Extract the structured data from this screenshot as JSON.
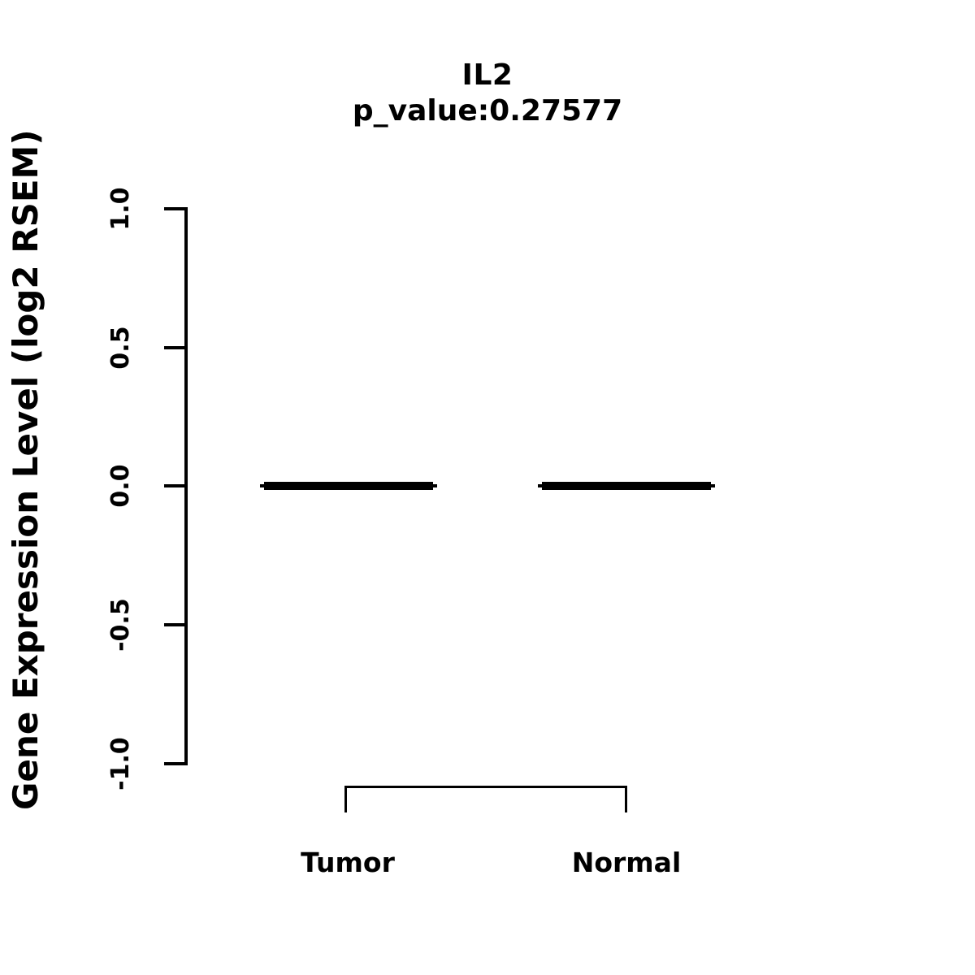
{
  "figure": {
    "background_color": "#ffffff",
    "foreground_color": "#000000"
  },
  "chart_data": {
    "type": "boxplot",
    "title": "IL2",
    "subtitle": "p_value:0.27577",
    "p_value": 0.27577,
    "gene": "IL2",
    "xlabel": "",
    "ylabel": "Gene Expression Level (log2 RSEM)",
    "categories": [
      "Tumor",
      "Normal"
    ],
    "series": [
      {
        "name": "Tumor",
        "median": 0.0,
        "q1": 0.0,
        "q3": 0.0,
        "whisker_low": 0.0,
        "whisker_high": 0.0
      },
      {
        "name": "Normal",
        "median": 0.0,
        "q1": 0.0,
        "q3": 0.0,
        "whisker_low": 0.0,
        "whisker_high": 0.0
      }
    ],
    "ylim": [
      -1.0,
      1.0
    ],
    "yticks": [
      1.0,
      0.5,
      0.0,
      -0.5,
      -1.0
    ],
    "ytick_labels": [
      "1.0",
      "0.5",
      "0.0",
      "-0.5",
      "-1.0"
    ],
    "grid": false,
    "legend_position": "none",
    "annotations": {
      "comparison_bracket": {
        "from": "Tumor",
        "to": "Normal"
      }
    }
  }
}
